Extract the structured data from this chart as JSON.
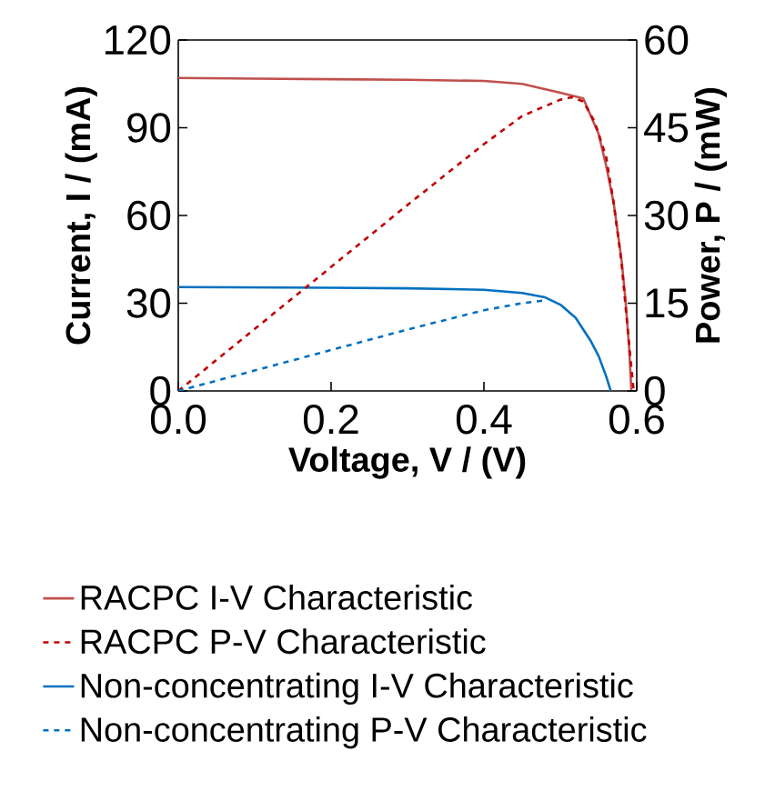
{
  "chart_data": {
    "type": "line",
    "xlabel": "Voltage, V / (V)",
    "ylabel": "Current, I / (mA)",
    "y2label": "Power, P / (mW)",
    "xlim": [
      0,
      0.6
    ],
    "ylim": [
      0,
      120
    ],
    "y2lim": [
      0,
      60
    ],
    "xticks": [
      {
        "value": 0,
        "label": "0.0"
      },
      {
        "value": 0.2,
        "label": "0.2"
      },
      {
        "value": 0.4,
        "label": "0.4"
      },
      {
        "value": 0.6,
        "label": "0.6"
      }
    ],
    "yticks": [
      0,
      30,
      60,
      90,
      120
    ],
    "y2ticks": [
      0,
      15,
      30,
      45,
      60
    ],
    "legend": "bottom",
    "grid": false,
    "marker": "none",
    "series": [
      {
        "name": "RACPC I-V Characteristic",
        "color": "#c0504d",
        "line_style": "solid",
        "x": [
          0,
          0.1,
          0.2,
          0.3,
          0.4,
          0.45,
          0.5,
          0.53,
          0.55,
          0.56,
          0.57,
          0.58,
          0.585,
          0.59,
          0.593
        ],
        "values": [
          107,
          106.8,
          106.6,
          106.4,
          106,
          105,
          102,
          100,
          88,
          77,
          64,
          45,
          32,
          15,
          0
        ]
      },
      {
        "name": "RACPC P-V Characteristic",
        "color": "#c00000",
        "line_style": "dashed",
        "axis": "y2",
        "x": [
          0,
          0.1,
          0.2,
          0.3,
          0.4,
          0.45,
          0.5,
          0.515,
          0.53,
          0.545,
          0.56,
          0.57,
          0.58,
          0.59,
          0.596
        ],
        "values": [
          0,
          10.6,
          21.2,
          31.8,
          42.2,
          47,
          49.8,
          50.2,
          49.5,
          46,
          40,
          32,
          22,
          8,
          0
        ]
      },
      {
        "name": "Non-concentrating I-V Characteristic",
        "color": "#0070c0",
        "line_style": "solid",
        "x": [
          0,
          0.1,
          0.2,
          0.3,
          0.4,
          0.45,
          0.48,
          0.5,
          0.52,
          0.54,
          0.55,
          0.56,
          0.566
        ],
        "values": [
          35.5,
          35.4,
          35.3,
          35.1,
          34.6,
          33.5,
          32,
          29.5,
          25,
          17,
          12,
          5,
          0
        ]
      },
      {
        "name": "Non-concentrating P-V Characteristic",
        "color": "#0070c0",
        "line_style": "dashed",
        "axis": "y2",
        "x": [
          0,
          0.1,
          0.2,
          0.3,
          0.4,
          0.45,
          0.48
        ],
        "values": [
          0,
          3.5,
          7,
          10.5,
          13.8,
          15,
          15.5
        ]
      }
    ]
  }
}
